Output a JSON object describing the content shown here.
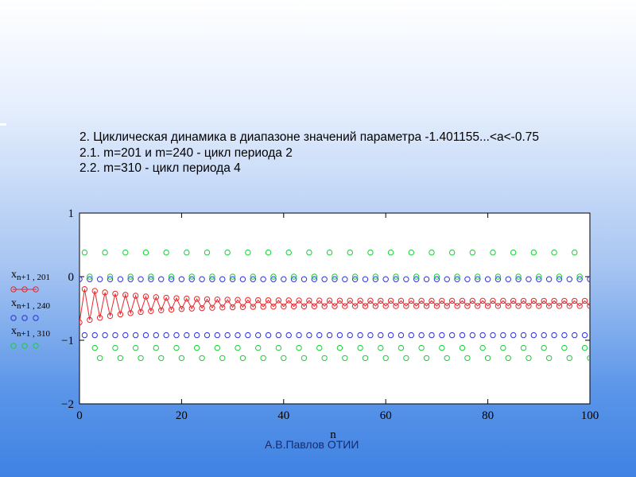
{
  "heading": {
    "line1": "2. Циклическая динамика в диапазоне значений параметра  -1.401155...<a<-0.75",
    "line2": "2.1. m=201 и m=240 - цикл периода 2",
    "line3": "2.2. m=310 - цикл периода 4"
  },
  "footer": "А.В.Павлов ОТИИ",
  "chart_data": {
    "type": "scatter",
    "xlabel": "n",
    "xlim": [
      0,
      100
    ],
    "ylim": [
      -2,
      1
    ],
    "xticks": [
      "0",
      "20",
      "40",
      "60",
      "80",
      "100"
    ],
    "yticks": [
      "1",
      "0",
      "−1",
      "−2"
    ],
    "grid": false,
    "legend_position": "left",
    "series": [
      {
        "name": "x n+1 , 201",
        "color": "#e8262c",
        "style": "line-markers",
        "start": [
          -0.72,
          -0.18
        ],
        "limit": [
          -0.46,
          -0.38
        ],
        "decay": 0.92,
        "n_start": 0,
        "n_end": 100,
        "n_step": 1
      },
      {
        "name": "x n+1 , 240",
        "color": "#2a31d6",
        "style": "markers",
        "levels": [
          -0.04,
          -0.92
        ],
        "n_start": 0,
        "n_end": 100,
        "n_step": 1
      },
      {
        "name": "x n+1 , 310",
        "color": "#1ecc3c",
        "style": "markers",
        "levels": [
          0.38,
          0.0,
          -1.12,
          -1.28
        ],
        "n_start": 1,
        "n_end": 100,
        "n_step": 1
      }
    ]
  }
}
